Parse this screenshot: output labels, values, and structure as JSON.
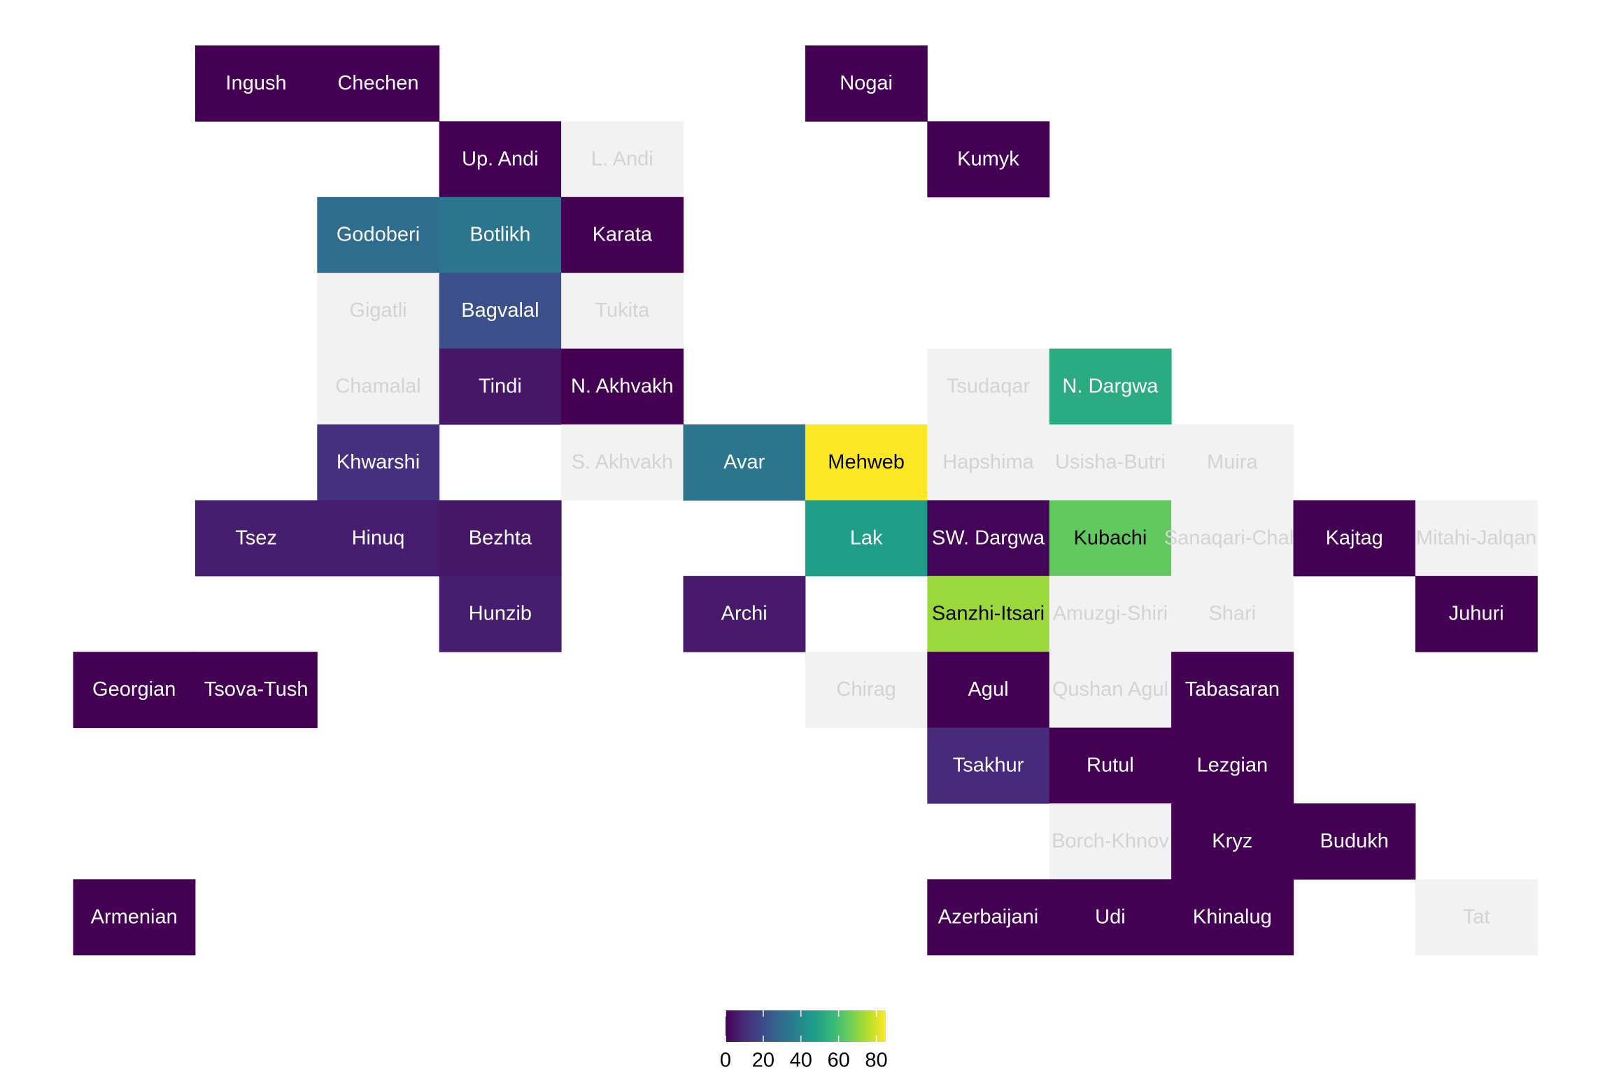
{
  "chart_data": {
    "type": "tile",
    "colormap": "viridis",
    "tiles": [
      {
        "label": "Ingush",
        "value": 0
      },
      {
        "label": "Chechen",
        "value": 0
      },
      {
        "label": "Nogai",
        "value": 0
      },
      {
        "label": "Up. Andi",
        "value": 0
      },
      {
        "label": "L. Andi",
        "value": null
      },
      {
        "label": "Kumyk",
        "value": 0
      },
      {
        "label": "Godoberi",
        "value": 30
      },
      {
        "label": "Botlikh",
        "value": 33
      },
      {
        "label": "Karata",
        "value": 0
      },
      {
        "label": "Gigatli",
        "value": null
      },
      {
        "label": "Bagvalal",
        "value": 21
      },
      {
        "label": "Tukita",
        "value": null
      },
      {
        "label": "Chamalal",
        "value": null
      },
      {
        "label": "Tindi",
        "value": 5
      },
      {
        "label": "N. Akhvakh",
        "value": 0
      },
      {
        "label": "Tsudaqar",
        "value": null
      },
      {
        "label": "N. Dargwa",
        "value": 52
      },
      {
        "label": "Khwarshi",
        "value": 12
      },
      {
        "label": "S. Akhvakh",
        "value": null
      },
      {
        "label": "Avar",
        "value": 33
      },
      {
        "label": "Mehweb",
        "value": 85
      },
      {
        "label": "Hapshima",
        "value": null
      },
      {
        "label": "Usisha-Butri",
        "value": null
      },
      {
        "label": "Muira",
        "value": null
      },
      {
        "label": "Tsez",
        "value": 7
      },
      {
        "label": "Hinuq",
        "value": 7
      },
      {
        "label": "Bezhta",
        "value": 5
      },
      {
        "label": "Lak",
        "value": 47
      },
      {
        "label": "SW. Dargwa",
        "value": 1
      },
      {
        "label": "Kubachi",
        "value": 64
      },
      {
        "label": "Sanaqari-Chah",
        "value": null
      },
      {
        "label": "Kajtag",
        "value": 0
      },
      {
        "label": "Mitahi-Jalqan",
        "value": null
      },
      {
        "label": "Hunzib",
        "value": 7
      },
      {
        "label": "Archi",
        "value": 6
      },
      {
        "label": "Sanzhi-Itsari",
        "value": 72
      },
      {
        "label": "Amuzgi-Shiri",
        "value": null
      },
      {
        "label": "Shari",
        "value": null
      },
      {
        "label": "Juhuri",
        "value": 0
      },
      {
        "label": "Georgian",
        "value": 0
      },
      {
        "label": "Tsova-Tush",
        "value": 0
      },
      {
        "label": "Chirag",
        "value": null
      },
      {
        "label": "Agul",
        "value": 0
      },
      {
        "label": "Qushan Agul",
        "value": null
      },
      {
        "label": "Tabasaran",
        "value": 0
      },
      {
        "label": "Tsakhur",
        "value": 10
      },
      {
        "label": "Rutul",
        "value": 0
      },
      {
        "label": "Lezgian",
        "value": 0
      },
      {
        "label": "Borch-Khnov",
        "value": null
      },
      {
        "label": "Kryz",
        "value": 0
      },
      {
        "label": "Budukh",
        "value": 0
      },
      {
        "label": "Armenian",
        "value": 0
      },
      {
        "label": "Azerbaijani",
        "value": 0
      },
      {
        "label": "Udi",
        "value": 0
      },
      {
        "label": "Khinalug",
        "value": 0
      },
      {
        "label": "Tat",
        "value": null
      }
    ],
    "clim": [
      0,
      85
    ],
    "cticks": [
      0,
      20,
      40,
      60,
      80
    ]
  }
}
